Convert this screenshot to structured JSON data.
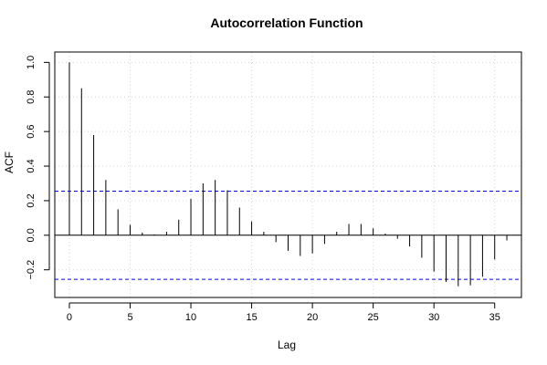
{
  "chart_data": {
    "type": "bar",
    "title": "Autocorrelation Function",
    "xlabel": "Lag",
    "ylabel": "ACF",
    "xlim": [
      -1.2,
      37.2
    ],
    "ylim": [
      -0.36,
      1.06
    ],
    "xticks": [
      0,
      5,
      10,
      15,
      20,
      25,
      30,
      35
    ],
    "yticks": [
      -0.2,
      0.0,
      0.2,
      0.4,
      0.6,
      0.8,
      1.0
    ],
    "ytick_labels": [
      "−0.2",
      "0.0",
      "0.2",
      "0.4",
      "0.6",
      "0.8",
      "1.0"
    ],
    "grid": true,
    "confidence_bounds": [
      0.255,
      -0.255
    ],
    "confidence_color": "#0000ff",
    "bar_color": "#000000",
    "zero_line_color": "#000000",
    "lags": [
      0,
      1,
      2,
      3,
      4,
      5,
      6,
      7,
      8,
      9,
      10,
      11,
      12,
      13,
      14,
      15,
      16,
      17,
      18,
      19,
      20,
      21,
      22,
      23,
      24,
      25,
      26,
      27,
      28,
      29,
      30,
      31,
      32,
      33,
      34,
      35,
      36
    ],
    "values": [
      1.0,
      0.85,
      0.58,
      0.32,
      0.15,
      0.06,
      0.015,
      0.005,
      0.02,
      0.09,
      0.21,
      0.3,
      0.32,
      0.26,
      0.16,
      0.08,
      0.02,
      -0.04,
      -0.09,
      -0.12,
      -0.105,
      -0.05,
      0.02,
      0.065,
      0.065,
      0.04,
      0.01,
      -0.02,
      -0.065,
      -0.13,
      -0.21,
      -0.27,
      -0.295,
      -0.29,
      -0.24,
      -0.14,
      -0.03
    ]
  }
}
